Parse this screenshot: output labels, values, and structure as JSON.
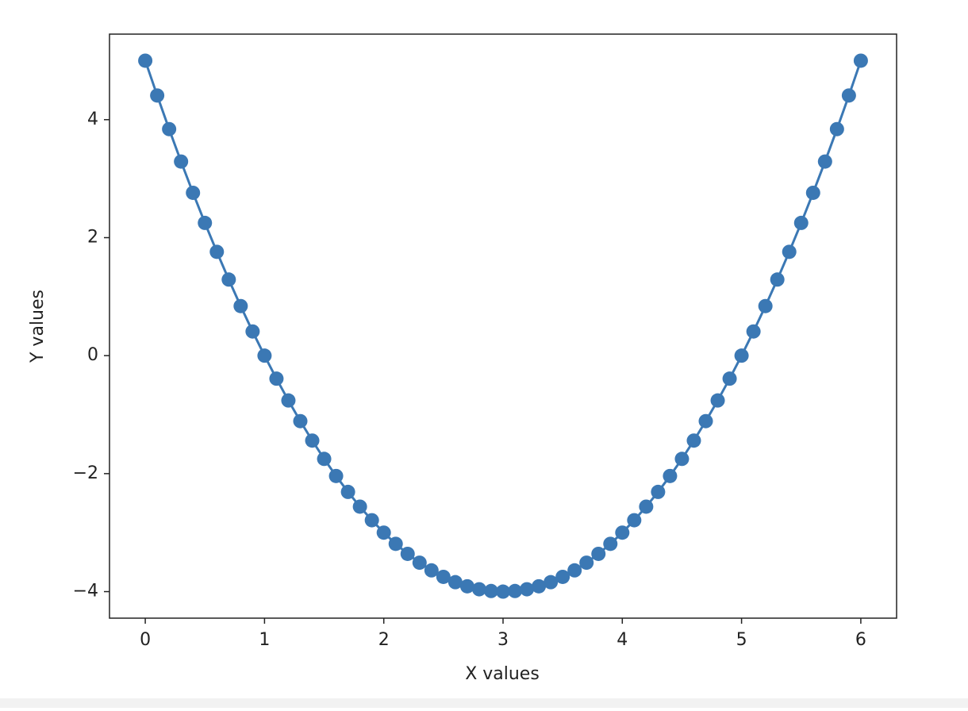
{
  "chart_data": {
    "type": "line",
    "xlabel": "X values",
    "ylabel": "Y values",
    "x": [
      0,
      0.1,
      0.2,
      0.3,
      0.4,
      0.5,
      0.6,
      0.7,
      0.8,
      0.9,
      1,
      1.1,
      1.2,
      1.3,
      1.4,
      1.5,
      1.6,
      1.7,
      1.8,
      1.9,
      2,
      2.1,
      2.2,
      2.3,
      2.4,
      2.5,
      2.6,
      2.7,
      2.8,
      2.9,
      3,
      3.1,
      3.2,
      3.3,
      3.4,
      3.5,
      3.6,
      3.7,
      3.8,
      3.9,
      4,
      4.1,
      4.2,
      4.3,
      4.4,
      4.5,
      4.6,
      4.7,
      4.8,
      4.9,
      5,
      5.1,
      5.2,
      5.3,
      5.4,
      5.5,
      5.6,
      5.7,
      5.8,
      5.9,
      6
    ],
    "values": [
      5,
      4.41,
      3.84,
      3.29,
      2.76,
      2.25,
      1.76,
      1.29,
      0.84,
      0.41,
      0,
      -0.39,
      -0.76,
      -1.11,
      -1.44,
      -1.75,
      -2.04,
      -2.31,
      -2.56,
      -2.79,
      -3,
      -3.19,
      -3.36,
      -3.51,
      -3.64,
      -3.75,
      -3.84,
      -3.91,
      -3.96,
      -3.99,
      -4,
      -3.99,
      -3.96,
      -3.91,
      -3.84,
      -3.75,
      -3.64,
      -3.51,
      -3.36,
      -3.19,
      -3,
      -2.79,
      -2.56,
      -2.31,
      -2.04,
      -1.75,
      -1.44,
      -1.11,
      -0.76,
      -0.39,
      0,
      0.41,
      0.84,
      1.29,
      1.76,
      2.25,
      2.76,
      3.29,
      3.84,
      4.41,
      5
    ],
    "color": "#3b78b4",
    "marker": "o",
    "xlim": [
      -0.3,
      6.3
    ],
    "ylim": [
      -4.45,
      5.45
    ],
    "xticks": [
      0,
      1,
      2,
      3,
      4,
      5,
      6
    ],
    "yticks": [
      {
        "value": -4,
        "label": "−4"
      },
      {
        "value": -2,
        "label": "−2"
      },
      0,
      2,
      4
    ]
  }
}
